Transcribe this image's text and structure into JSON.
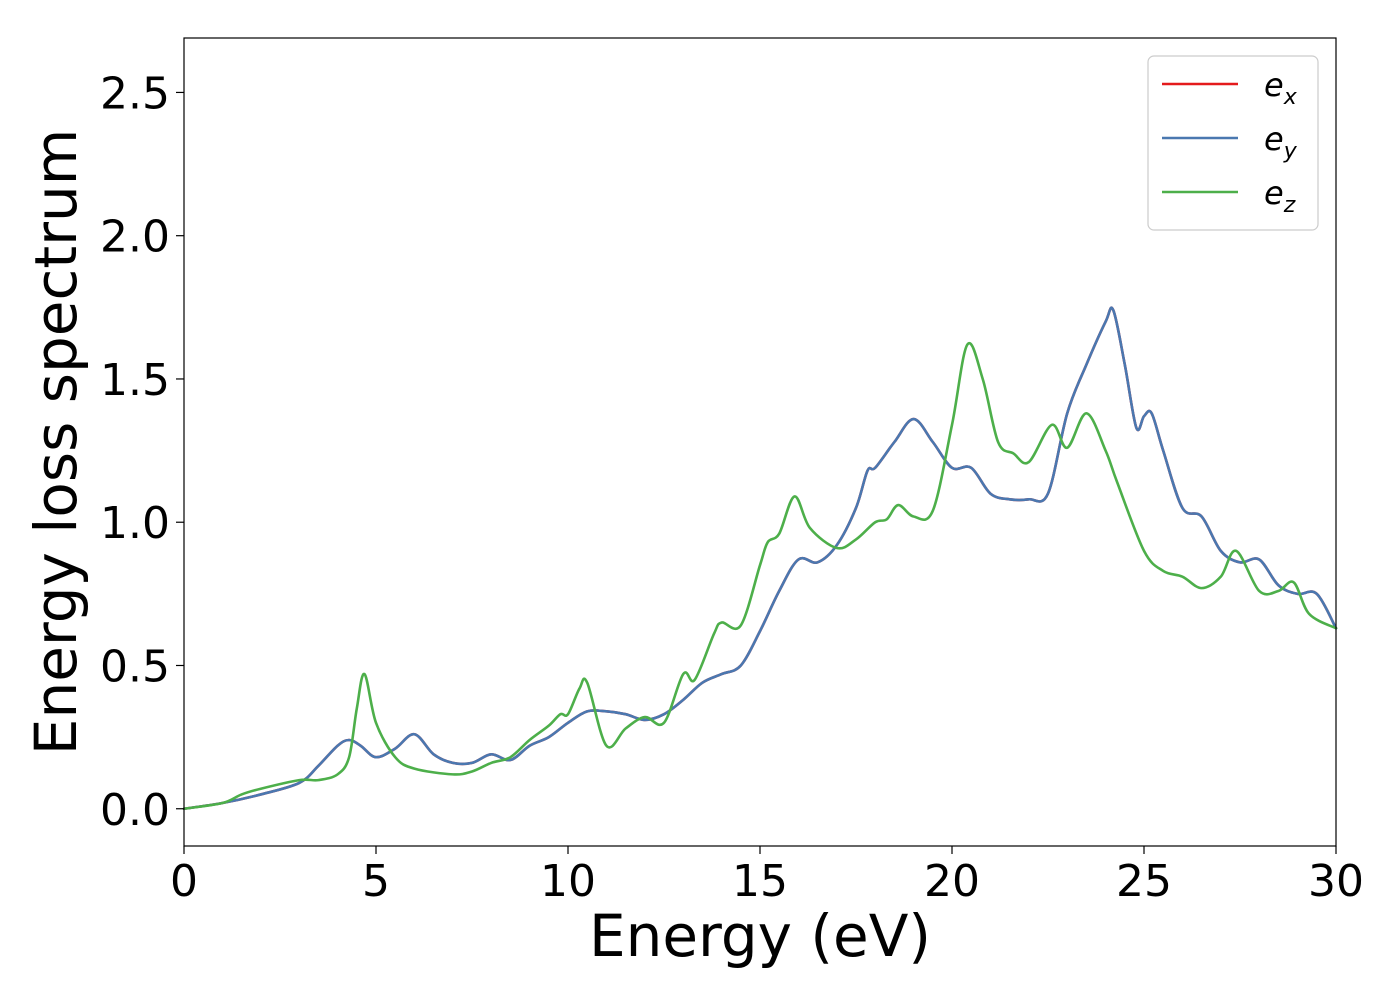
{
  "chart_data": {
    "type": "line",
    "xlabel": "Energy (eV)",
    "ylabel": "Energy loss spectrum",
    "xlim": [
      0,
      30
    ],
    "ylim": [
      -0.13,
      2.69
    ],
    "grid": false,
    "legend_position": "top-right",
    "x_ticks": [
      "0",
      "5",
      "10",
      "15",
      "20",
      "25",
      "30"
    ],
    "y_ticks": [
      "0.0",
      "0.5",
      "1.0",
      "1.5",
      "2.0",
      "2.5"
    ],
    "series": [
      {
        "name": "e_x",
        "label_base": "e",
        "label_sub": "x",
        "color": "#e41a1c",
        "x": [
          0,
          1,
          2,
          3,
          3.5,
          4,
          4.3,
          4.6,
          5,
          5.5,
          6,
          6.5,
          7,
          7.5,
          8,
          8.5,
          9,
          9.5,
          10,
          10.5,
          11,
          11.5,
          12,
          12.5,
          13,
          13.5,
          14,
          14.5,
          15,
          15.5,
          16,
          16.5,
          17,
          17.5,
          17.8,
          18,
          18.5,
          19,
          19.5,
          20,
          20.5,
          21,
          21.5,
          22,
          22.5,
          23,
          23.5,
          24,
          24.2,
          24.5,
          24.8,
          25,
          25.2,
          25.5,
          26,
          26.5,
          27,
          27.5,
          28,
          28.5,
          29,
          29.5,
          30
        ],
        "values": [
          0,
          0.02,
          0.05,
          0.09,
          0.15,
          0.22,
          0.24,
          0.22,
          0.18,
          0.21,
          0.26,
          0.19,
          0.16,
          0.16,
          0.19,
          0.17,
          0.22,
          0.25,
          0.3,
          0.34,
          0.34,
          0.33,
          0.31,
          0.33,
          0.38,
          0.44,
          0.47,
          0.5,
          0.62,
          0.76,
          0.87,
          0.86,
          0.92,
          1.05,
          1.18,
          1.19,
          1.28,
          1.36,
          1.28,
          1.19,
          1.19,
          1.1,
          1.08,
          1.08,
          1.1,
          1.38,
          1.55,
          1.7,
          1.74,
          1.55,
          1.33,
          1.37,
          1.38,
          1.25,
          1.05,
          1.02,
          0.9,
          0.86,
          0.87,
          0.78,
          0.75,
          0.75,
          0.63
        ]
      },
      {
        "name": "e_y",
        "label_base": "e",
        "label_sub": "y",
        "color": "#4a78b0",
        "x": [
          0,
          1,
          2,
          3,
          3.5,
          4,
          4.3,
          4.6,
          5,
          5.5,
          6,
          6.5,
          7,
          7.5,
          8,
          8.5,
          9,
          9.5,
          10,
          10.5,
          11,
          11.5,
          12,
          12.5,
          13,
          13.5,
          14,
          14.5,
          15,
          15.5,
          16,
          16.5,
          17,
          17.5,
          17.8,
          18,
          18.5,
          19,
          19.5,
          20,
          20.5,
          21,
          21.5,
          22,
          22.5,
          23,
          23.5,
          24,
          24.2,
          24.5,
          24.8,
          25,
          25.2,
          25.5,
          26,
          26.5,
          27,
          27.5,
          28,
          28.5,
          29,
          29.5,
          30
        ],
        "values": [
          0,
          0.02,
          0.05,
          0.09,
          0.15,
          0.22,
          0.24,
          0.22,
          0.18,
          0.21,
          0.26,
          0.19,
          0.16,
          0.16,
          0.19,
          0.17,
          0.22,
          0.25,
          0.3,
          0.34,
          0.34,
          0.33,
          0.31,
          0.33,
          0.38,
          0.44,
          0.47,
          0.5,
          0.62,
          0.76,
          0.87,
          0.86,
          0.92,
          1.05,
          1.18,
          1.19,
          1.28,
          1.36,
          1.28,
          1.19,
          1.19,
          1.1,
          1.08,
          1.08,
          1.1,
          1.38,
          1.55,
          1.7,
          1.74,
          1.55,
          1.33,
          1.37,
          1.38,
          1.25,
          1.05,
          1.02,
          0.9,
          0.86,
          0.87,
          0.78,
          0.75,
          0.75,
          0.63
        ]
      },
      {
        "name": "e_z",
        "label_base": "e",
        "label_sub": "z",
        "color": "#4daf4a",
        "x": [
          0,
          1,
          1.5,
          2,
          3,
          3.5,
          4,
          4.3,
          4.5,
          4.7,
          5,
          5.5,
          6,
          7,
          7.5,
          8,
          8.5,
          9,
          9.5,
          9.8,
          10,
          10.3,
          10.5,
          11,
          11.5,
          12,
          12.5,
          13,
          13.3,
          13.8,
          14,
          14.5,
          15,
          15.2,
          15.5,
          15.9,
          16.3,
          17,
          17.5,
          18,
          18.3,
          18.6,
          19,
          19.5,
          20,
          20.4,
          20.8,
          21.2,
          21.6,
          22,
          22.6,
          23,
          23.5,
          24,
          24.3,
          25,
          25.5,
          26,
          26.5,
          27,
          27.4,
          28,
          28.5,
          28.9,
          29.3,
          30
        ],
        "values": [
          0,
          0.02,
          0.05,
          0.07,
          0.1,
          0.1,
          0.12,
          0.18,
          0.35,
          0.47,
          0.3,
          0.18,
          0.14,
          0.12,
          0.13,
          0.16,
          0.18,
          0.24,
          0.29,
          0.33,
          0.33,
          0.42,
          0.44,
          0.22,
          0.28,
          0.32,
          0.3,
          0.47,
          0.45,
          0.61,
          0.65,
          0.64,
          0.85,
          0.93,
          0.96,
          1.09,
          0.98,
          0.91,
          0.94,
          1.0,
          1.01,
          1.06,
          1.02,
          1.04,
          1.34,
          1.62,
          1.5,
          1.28,
          1.24,
          1.21,
          1.34,
          1.26,
          1.38,
          1.25,
          1.14,
          0.9,
          0.83,
          0.81,
          0.77,
          0.81,
          0.9,
          0.76,
          0.76,
          0.79,
          0.68,
          0.63
        ]
      }
    ]
  }
}
